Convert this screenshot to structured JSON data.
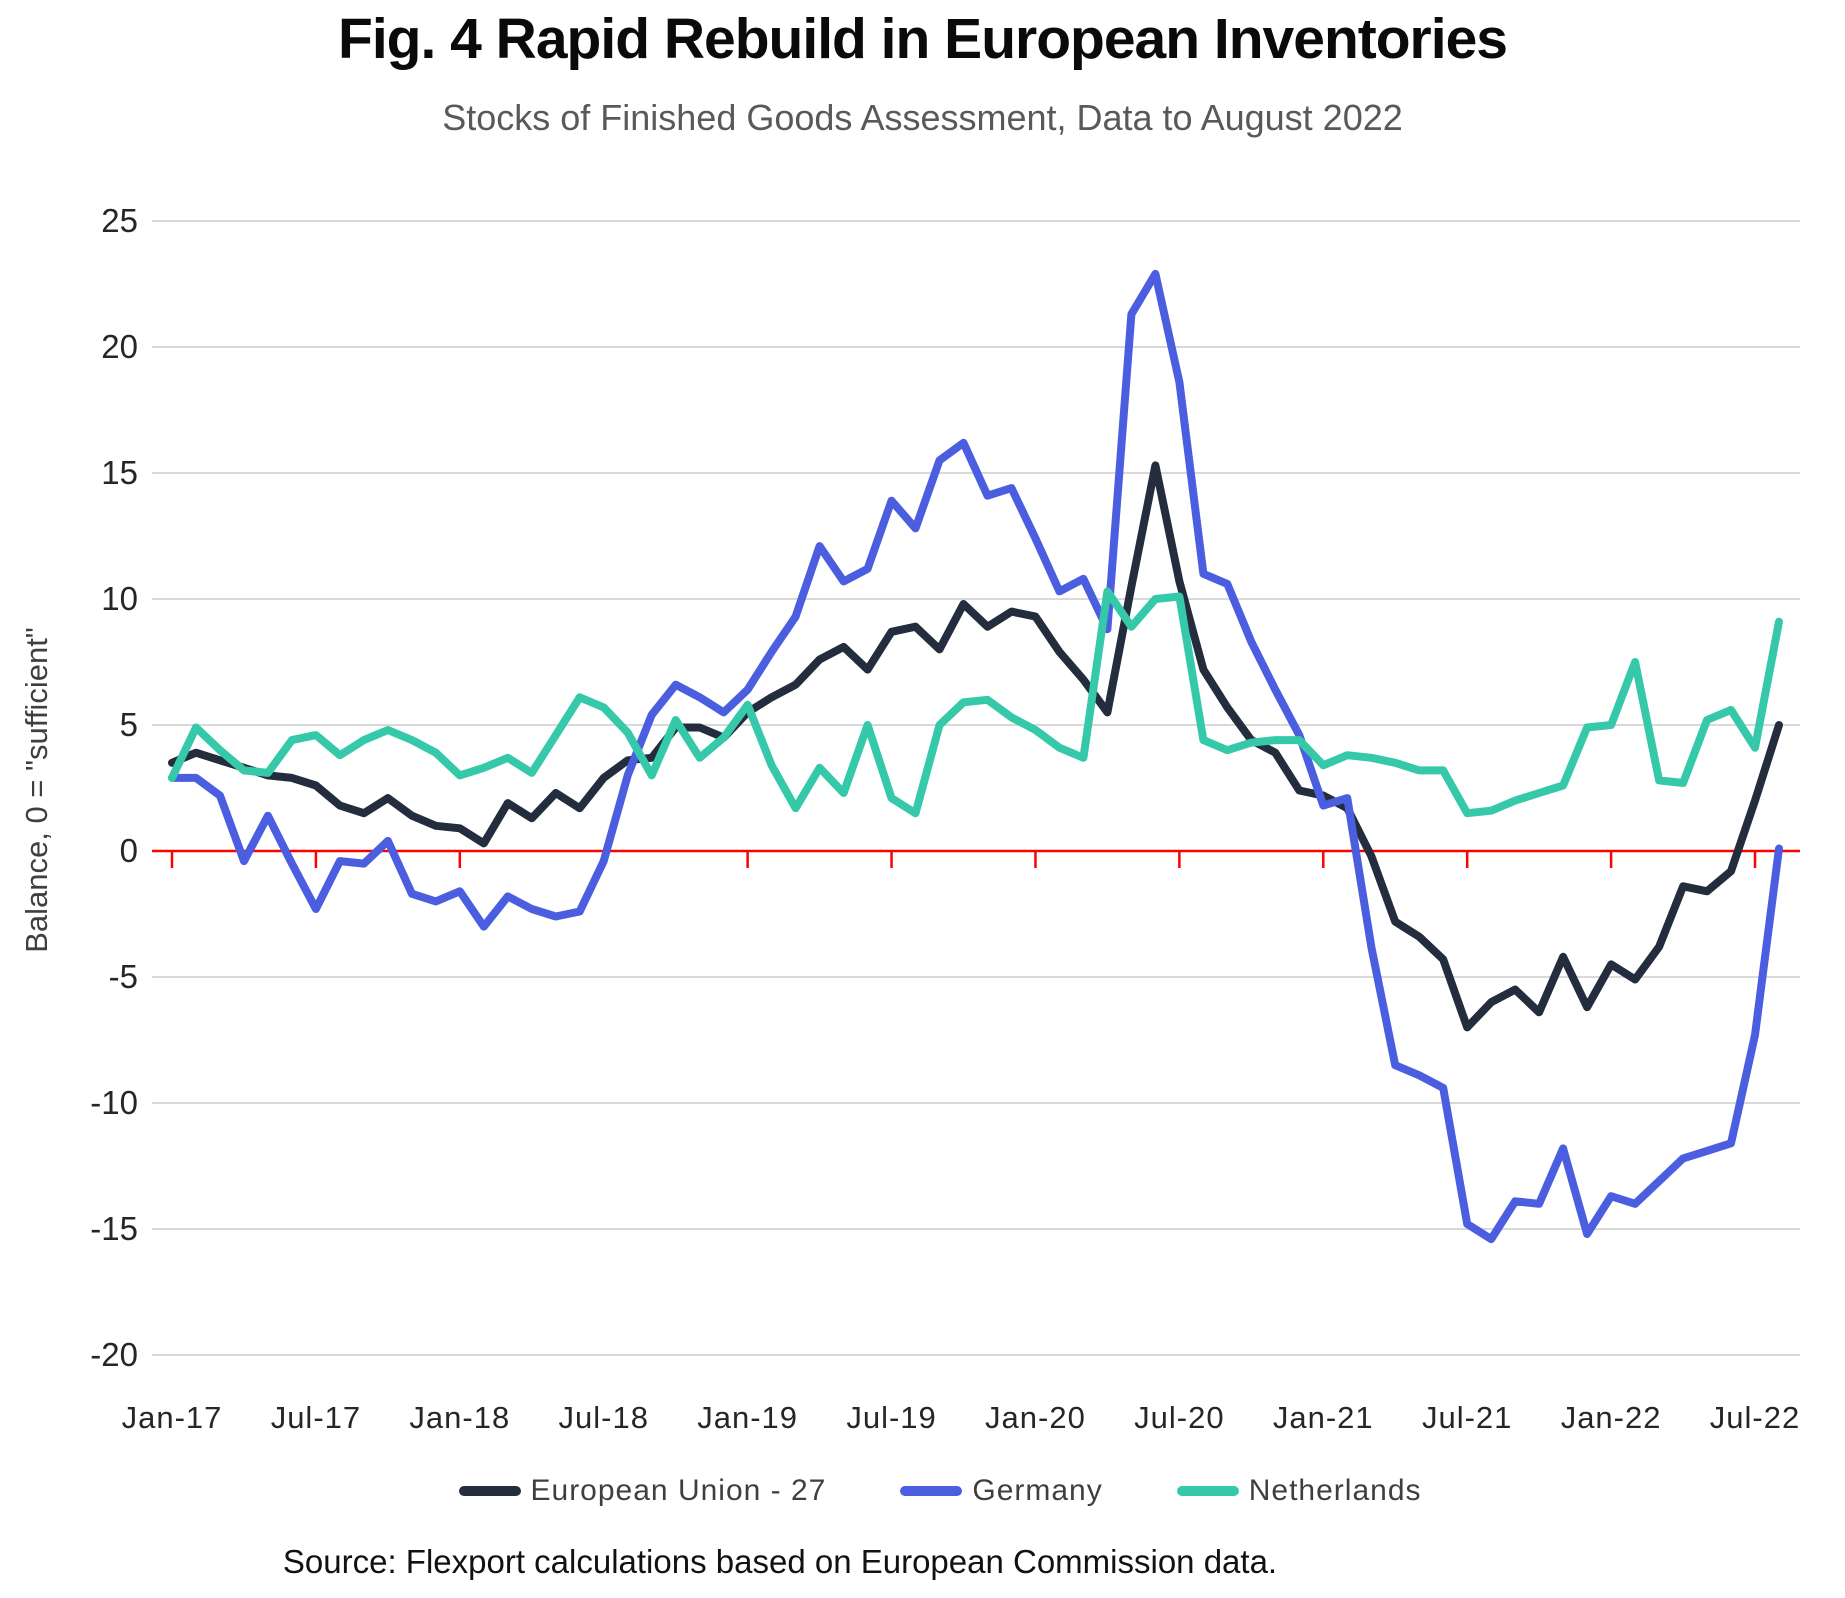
{
  "header": {
    "title": "Fig. 4 Rapid Rebuild in European Inventories",
    "subtitle": "Stocks of Finished Goods Assessment, Data to August 2022"
  },
  "footer": {
    "source": "Source: Flexport calculations based on European Commission data."
  },
  "chart_data": {
    "type": "line",
    "title": "Fig. 4 Rapid Rebuild in European Inventories",
    "subtitle": "Stocks of Finished Goods Assessment, Data to August 2022",
    "ylabel": "Balance, 0 = \"sufficient\"",
    "ylim": [
      -20,
      25
    ],
    "y_ticks": [
      25,
      20,
      15,
      10,
      5,
      0,
      -5,
      -10,
      -15,
      -20
    ],
    "x_tick_labels": [
      "Jan-17",
      "Jul-17",
      "Jan-18",
      "Jul-18",
      "Jan-19",
      "Jul-19",
      "Jan-20",
      "Jul-20",
      "Jan-21",
      "Jul-21",
      "Jan-22",
      "Jul-22"
    ],
    "x_start": "Jan-17",
    "x_end": "Aug-22",
    "frequency": "monthly",
    "grid": true,
    "legend_position": "bottom",
    "grid_color": "#d9d9d9",
    "zero_line_color": "#fe0000",
    "axis_text_color": "#262626",
    "series": [
      {
        "name": "European Union - 27",
        "color": "#232d3d",
        "values": [
          3.5,
          3.9,
          3.6,
          3.3,
          3.0,
          2.9,
          2.6,
          1.8,
          1.5,
          2.1,
          1.4,
          1.0,
          0.9,
          0.3,
          1.9,
          1.3,
          2.3,
          1.7,
          2.9,
          3.6,
          3.7,
          4.9,
          4.9,
          4.5,
          5.5,
          6.1,
          6.6,
          7.6,
          8.1,
          7.2,
          8.7,
          8.9,
          8.0,
          9.8,
          8.9,
          9.5,
          9.3,
          7.9,
          6.8,
          5.5,
          10.5,
          15.3,
          10.7,
          7.2,
          5.7,
          4.4,
          3.9,
          2.4,
          2.2,
          1.7,
          -0.2,
          -2.8,
          -3.4,
          -4.3,
          -7.0,
          -6.0,
          -5.5,
          -6.4,
          -4.2,
          -6.2,
          -4.5,
          -5.1,
          -3.8,
          -1.4,
          -1.6,
          -0.8,
          2.0,
          5.0
        ]
      },
      {
        "name": "Germany",
        "color": "#4c5ee0",
        "values": [
          2.9,
          2.9,
          2.2,
          -0.4,
          1.4,
          -0.5,
          -2.3,
          -0.4,
          -0.5,
          0.4,
          -1.7,
          -2.0,
          -1.6,
          -3.0,
          -1.8,
          -2.3,
          -2.6,
          -2.4,
          -0.4,
          3.0,
          5.4,
          6.6,
          6.1,
          5.5,
          6.4,
          7.9,
          9.3,
          12.1,
          10.7,
          11.2,
          13.9,
          12.8,
          15.5,
          16.2,
          14.1,
          14.4,
          12.4,
          10.3,
          10.8,
          8.8,
          21.3,
          22.9,
          18.6,
          11.0,
          10.6,
          8.3,
          6.4,
          4.6,
          1.8,
          2.1,
          -3.8,
          -8.5,
          -8.9,
          -9.4,
          -14.8,
          -15.4,
          -13.9,
          -14.0,
          -11.8,
          -15.2,
          -13.7,
          -14.0,
          -13.1,
          -12.2,
          -11.9,
          -11.6,
          -7.3,
          0.1
        ]
      },
      {
        "name": "Netherlands",
        "color": "#36c9a9",
        "values": [
          2.9,
          4.9,
          4.0,
          3.2,
          3.1,
          4.4,
          4.6,
          3.8,
          4.4,
          4.8,
          4.4,
          3.9,
          3.0,
          3.3,
          3.7,
          3.1,
          4.6,
          6.1,
          5.7,
          4.7,
          3.0,
          5.2,
          3.7,
          4.5,
          5.8,
          3.4,
          1.7,
          3.3,
          2.3,
          5.0,
          2.1,
          1.5,
          5.0,
          5.9,
          6.0,
          5.3,
          4.8,
          4.1,
          3.7,
          10.3,
          8.9,
          10.0,
          10.1,
          4.4,
          4.0,
          4.3,
          4.4,
          4.4,
          3.4,
          3.8,
          3.7,
          3.5,
          3.2,
          3.2,
          1.5,
          1.6,
          2.0,
          2.3,
          2.6,
          4.9,
          5.0,
          7.5,
          2.8,
          2.7,
          5.2,
          5.6,
          4.1,
          9.1
        ]
      }
    ]
  }
}
